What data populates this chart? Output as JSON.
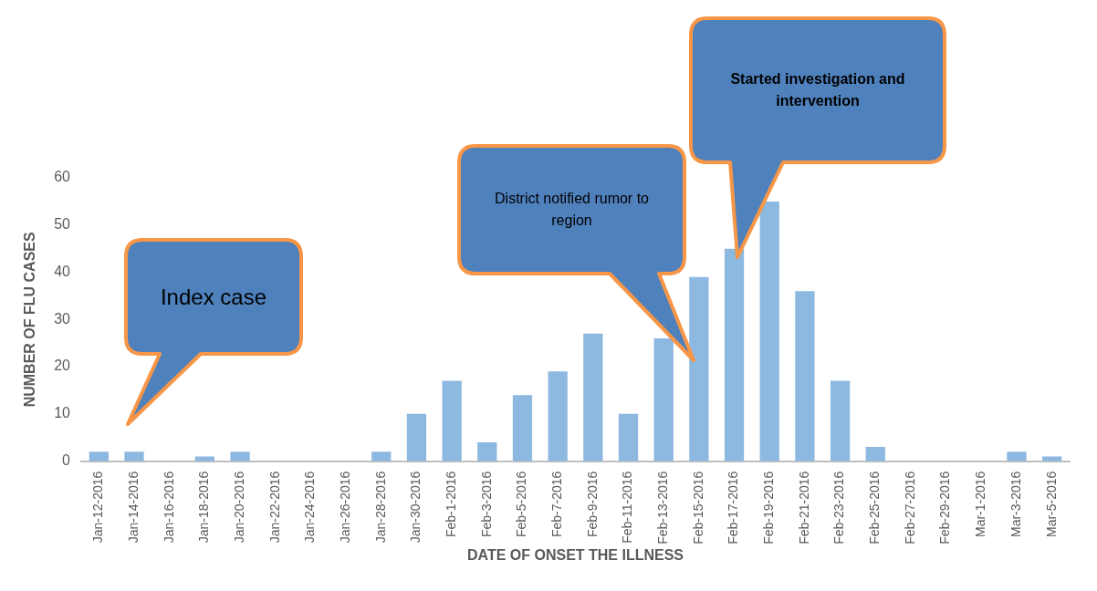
{
  "chart_data": {
    "type": "bar",
    "xlabel": "DATE OF ONSET THE ILLNESS",
    "ylabel": "NUMBER OF FLU CASES",
    "categories": [
      "Jan-12-2016",
      "Jan-14-2016",
      "Jan-16-2016",
      "Jan-18-2016",
      "Jan-20-2016",
      "Jan-22-2016",
      "Jan-24-2016",
      "Jan-26-2016",
      "Jan-28-2016",
      "Jan-30-2016",
      "Feb-1-2016",
      "Feb-3-2016",
      "Feb-5-2016",
      "Feb-7-2016",
      "Feb-9-2016",
      "Feb-11-2016",
      "Feb-13-2016",
      "Feb-15-2016",
      "Feb-17-2016",
      "Feb-19-2016",
      "Feb-21-2016",
      "Feb-23-2016",
      "Feb-25-2016",
      "Feb-27-2016",
      "Feb-29-2016",
      "Mar-1-2016",
      "Mar-3-2016",
      "Mar-5-2016"
    ],
    "values": [
      2,
      2,
      0,
      1,
      2,
      0,
      0,
      0,
      2,
      10,
      17,
      4,
      14,
      19,
      27,
      10,
      26,
      39,
      45,
      55,
      36,
      17,
      3,
      0,
      0,
      0,
      2,
      1
    ],
    "color": "#8db8e0",
    "ylim": [
      0,
      60
    ],
    "yticks": [
      0,
      10,
      20,
      30,
      40,
      50,
      60
    ],
    "grid": false,
    "legend": false,
    "annotations": [
      "Index case",
      "District notified rumor to region",
      "Started investigation and intervention"
    ]
  }
}
